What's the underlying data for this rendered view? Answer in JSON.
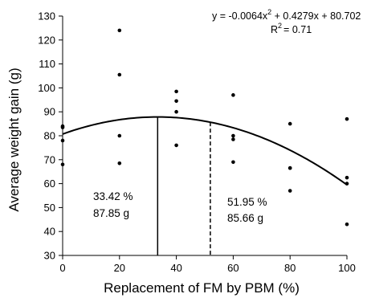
{
  "chart_data": {
    "type": "scatter",
    "xlabel": "Replacement of FM by PBM (%)",
    "ylabel": "Average weight gain (g)",
    "xlim": [
      0,
      100
    ],
    "ylim": [
      30,
      130
    ],
    "x_ticks": [
      "0",
      "20",
      "40",
      "60",
      "80",
      "100"
    ],
    "y_ticks": [
      "30",
      "40",
      "50",
      "60",
      "70",
      "80",
      "90",
      "100",
      "110",
      "120",
      "130"
    ],
    "grid": false,
    "points": [
      {
        "x": 0,
        "y": 84
      },
      {
        "x": 0,
        "y": 83.5
      },
      {
        "x": 0,
        "y": 78
      },
      {
        "x": 0,
        "y": 68
      },
      {
        "x": 20,
        "y": 124
      },
      {
        "x": 20,
        "y": 105.5
      },
      {
        "x": 20,
        "y": 80
      },
      {
        "x": 20,
        "y": 68.5
      },
      {
        "x": 40,
        "y": 98.5
      },
      {
        "x": 40,
        "y": 94.5
      },
      {
        "x": 40,
        "y": 90
      },
      {
        "x": 40,
        "y": 76
      },
      {
        "x": 60,
        "y": 97
      },
      {
        "x": 60,
        "y": 80
      },
      {
        "x": 60,
        "y": 78.5
      },
      {
        "x": 60,
        "y": 69
      },
      {
        "x": 80,
        "y": 85
      },
      {
        "x": 80,
        "y": 66.5
      },
      {
        "x": 80,
        "y": 66.5
      },
      {
        "x": 80,
        "y": 57
      },
      {
        "x": 100,
        "y": 87
      },
      {
        "x": 100,
        "y": 62.5
      },
      {
        "x": 100,
        "y": 60
      },
      {
        "x": 100,
        "y": 43
      }
    ],
    "trendline": {
      "type": "quadratic",
      "a": -0.0064,
      "b": 0.4279,
      "c": 80.702
    },
    "equation": "y = -0.0064x",
    "equation_sup": "2",
    "equation_rest": " + 0.4279x + 80.702",
    "r2_prefix": "R",
    "r2_sup": "2",
    "r2_value": "= 0.71",
    "markers": [
      {
        "x": 33.42,
        "style": "solid",
        "label_percent": "33.42 %",
        "label_value": "87.85 g"
      },
      {
        "x": 51.95,
        "style": "dashed",
        "label_percent": "51.95 %",
        "label_value": "85.66 g"
      }
    ]
  }
}
